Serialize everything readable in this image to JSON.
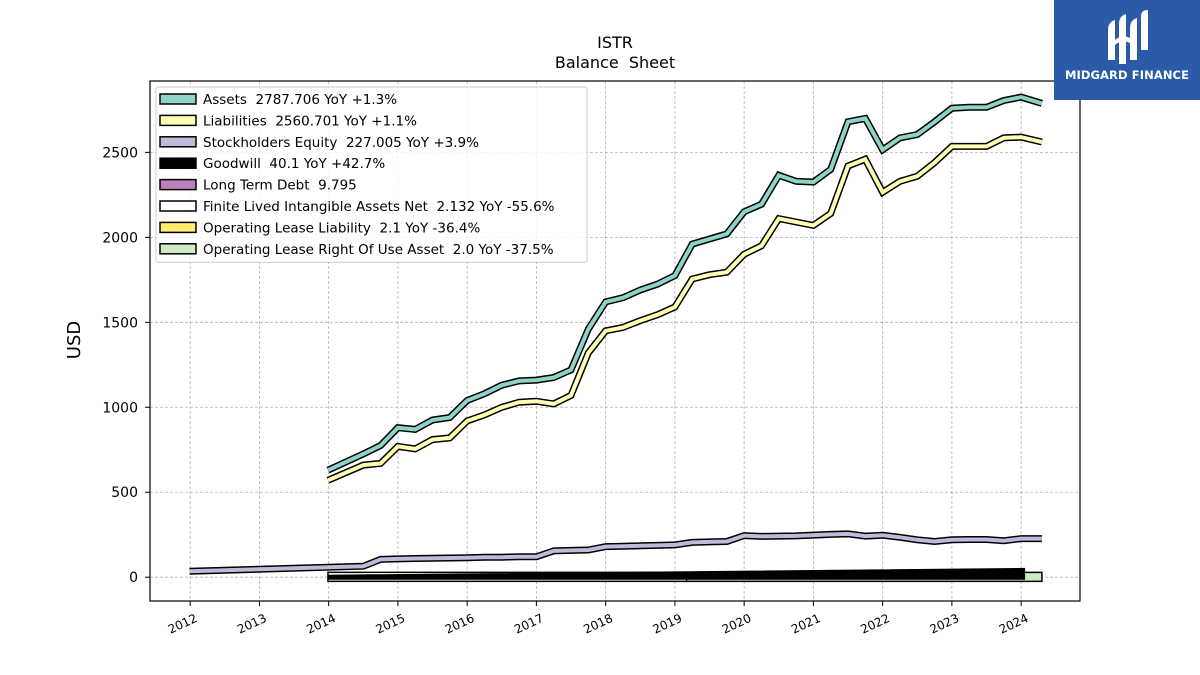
{
  "chart_data": {
    "type": "area",
    "title": "ISTR",
    "subtitle": "Balance  Sheet",
    "xlabel": "",
    "ylabel": "USD",
    "x_ticks": [
      "2012",
      "2013",
      "2014",
      "2015",
      "2016",
      "2017",
      "2018",
      "2019",
      "2020",
      "2021",
      "2022",
      "2023",
      "2024"
    ],
    "y_ticks": [
      0,
      500,
      1000,
      1500,
      2000,
      2500
    ],
    "xlim": [
      2011.42,
      2024.85
    ],
    "ylim": [
      -140,
      2920
    ],
    "grid": true,
    "legend_position": "top-left",
    "series": [
      {
        "name": "Assets  2787.706 YoY +1.3%",
        "color": "#8dd3c7",
        "x": [
          2013.99,
          2014.5,
          2014.75,
          2015.0,
          2015.25,
          2015.5,
          2015.75,
          2016.0,
          2016.25,
          2016.5,
          2016.75,
          2017.0,
          2017.25,
          2017.5,
          2017.75,
          2018.0,
          2018.25,
          2018.5,
          2018.75,
          2019.0,
          2019.25,
          2019.5,
          2019.75,
          2020.0,
          2020.25,
          2020.5,
          2020.75,
          2021.0,
          2021.25,
          2021.5,
          2021.75,
          2022.0,
          2022.25,
          2022.5,
          2022.75,
          2023.0,
          2023.25,
          2023.5,
          2023.75,
          2024.0,
          2024.3
        ],
        "values": [
          630,
          725,
          775,
          880,
          870,
          925,
          940,
          1040,
          1080,
          1130,
          1155,
          1160,
          1175,
          1220,
          1460,
          1620,
          1645,
          1690,
          1725,
          1775,
          1960,
          1990,
          2020,
          2150,
          2195,
          2365,
          2330,
          2325,
          2400,
          2680,
          2700,
          2515,
          2585,
          2605,
          2680,
          2760,
          2765,
          2765,
          2805,
          2825,
          2788
        ]
      },
      {
        "name": "Liabilities  2560.701 YoY +1.1%",
        "color": "#ffffb3",
        "x": [
          2013.99,
          2014.5,
          2014.75,
          2015.0,
          2015.25,
          2015.5,
          2015.75,
          2016.0,
          2016.25,
          2016.5,
          2016.75,
          2017.0,
          2017.25,
          2017.5,
          2017.75,
          2018.0,
          2018.25,
          2018.5,
          2018.75,
          2019.0,
          2019.25,
          2019.5,
          2019.75,
          2020.0,
          2020.25,
          2020.5,
          2020.75,
          2021.0,
          2021.25,
          2021.5,
          2021.75,
          2022.0,
          2022.25,
          2022.5,
          2022.75,
          2023.0,
          2023.25,
          2023.5,
          2023.75,
          2024.0,
          2024.3
        ],
        "values": [
          570,
          660,
          670,
          770,
          755,
          810,
          820,
          920,
          955,
          1000,
          1030,
          1035,
          1020,
          1070,
          1320,
          1450,
          1470,
          1510,
          1545,
          1590,
          1755,
          1780,
          1795,
          1900,
          1950,
          2110,
          2090,
          2070,
          2140,
          2420,
          2460,
          2265,
          2330,
          2360,
          2440,
          2535,
          2535,
          2535,
          2585,
          2590,
          2561
        ]
      },
      {
        "name": "Stockholders Equity  227.005 YoY +3.9%",
        "color": "#bebada",
        "x": [
          2011.99,
          2014.5,
          2014.75,
          2015.0,
          2015.25,
          2015.5,
          2015.75,
          2016.0,
          2016.25,
          2016.5,
          2016.75,
          2017.0,
          2017.25,
          2017.5,
          2017.75,
          2018.0,
          2018.25,
          2018.5,
          2018.75,
          2019.0,
          2019.25,
          2019.5,
          2019.75,
          2020.0,
          2020.25,
          2020.5,
          2020.75,
          2021.0,
          2021.25,
          2021.5,
          2021.75,
          2022.0,
          2022.25,
          2022.5,
          2022.75,
          2023.0,
          2023.25,
          2023.5,
          2023.75,
          2024.0,
          2024.3
        ],
        "values": [
          35,
          65,
          105,
          108,
          110,
          112,
          113,
          115,
          117,
          118,
          120,
          120,
          155,
          158,
          160,
          180,
          182,
          185,
          187,
          190,
          205,
          208,
          210,
          245,
          240,
          242,
          243,
          248,
          252,
          255,
          242,
          247,
          235,
          220,
          210,
          220,
          222,
          222,
          215,
          227,
          227
        ]
      },
      {
        "name": "Goodwill  40.1 YoY +42.7%",
        "color": "#000000",
        "x": [
          2013.99,
          2024.05
        ],
        "values": [
          0,
          40.1
        ]
      },
      {
        "name": "Long Term Debt  9.795",
        "color": "#bc80bd",
        "x": [
          2013.99,
          2024.3
        ],
        "values": [
          9.795,
          9.795
        ]
      },
      {
        "name": "Finite Lived Intangible Assets Net  2.132 YoY -55.6%",
        "color": "#ffffff",
        "x": [
          2013.99,
          2019.17
        ],
        "values": [
          2.132,
          2.132
        ]
      },
      {
        "name": "Operating Lease Liability  2.1 YoY -36.4%",
        "color": "#ffed6f",
        "x": [
          2019.17,
          2024.3
        ],
        "values": [
          2.1,
          2.1
        ]
      },
      {
        "name": "Operating Lease Right Of Use Asset  2.0 YoY -37.5%",
        "color": "#ccebc5",
        "x": [
          2019.17,
          2024.3
        ],
        "values": [
          2.0,
          2.0
        ]
      }
    ]
  },
  "logo": {
    "text": "MIDGARD FINANCE",
    "background": "#2b5aa8"
  }
}
